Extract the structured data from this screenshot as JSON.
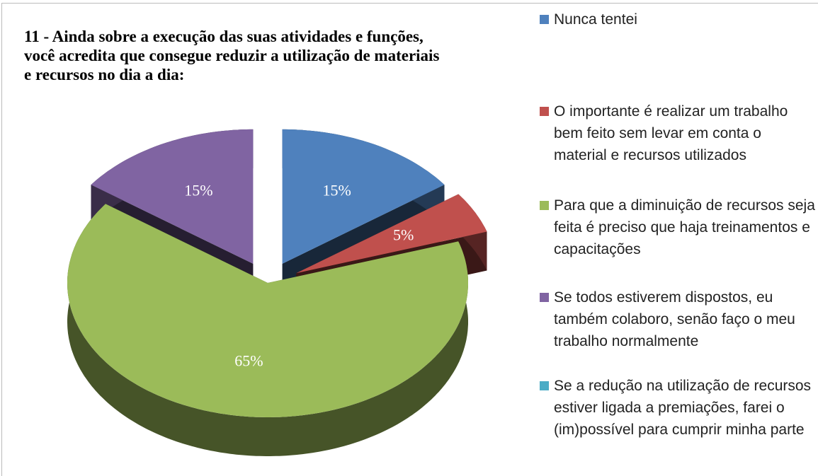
{
  "chart_data": {
    "type": "pie",
    "title": "11 - Ainda sobre a execução das suas atividades e funções, você acredita que consegue reduzir a utilização de materiais e recursos no dia a dia:",
    "categories": [
      "Nunca tentei",
      "O importante é realizar um trabalho bem feito sem levar em conta o material e recursos utilizados",
      "Para que a diminuição de recursos seja feita é preciso que haja treinamentos e capacitações",
      "Se todos estiverem dispostos, eu também colaboro, senão faço o meu trabalho normalmente",
      "Se a redução na utilização de recursos estiver ligada a premiações, farei o (im)possível para cumprir minha parte"
    ],
    "values": [
      15,
      5,
      65,
      15,
      0
    ],
    "value_labels": [
      "15%",
      "5%",
      "65%",
      "15%",
      null
    ],
    "colors": [
      "#4f81bd",
      "#c0504d",
      "#9bbb59",
      "#8064a2",
      "#4bacc6"
    ],
    "legend": "right"
  }
}
